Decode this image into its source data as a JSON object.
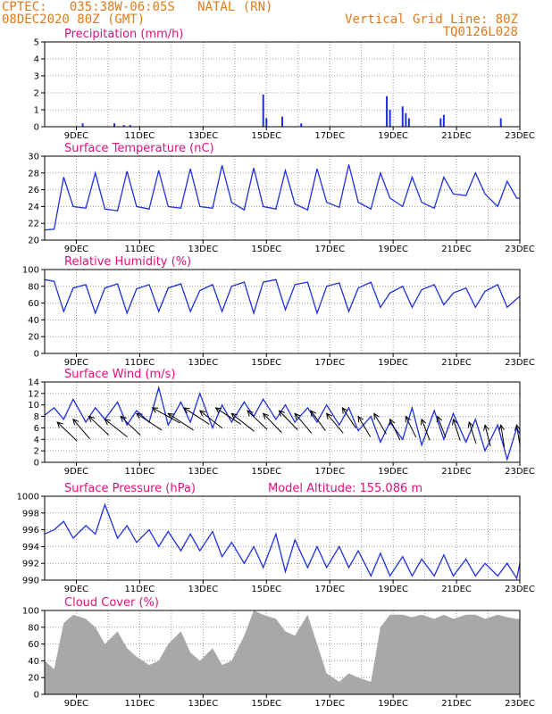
{
  "header": {
    "line1": "CPTEC:   035:38W-06:05S   NATAL (RN)",
    "line2": "08DEC2020 80Z (GMT)",
    "right1": "Vertical Grid Line: 80Z",
    "right2": "TQ0126L028"
  },
  "colors": {
    "header": "#e07a1a",
    "title": "#e0107a",
    "line": "#1f2fe0",
    "cloud": "#a8a8a8",
    "grid": "#9a9a9a"
  },
  "chart_data": [
    {
      "type": "bar",
      "title": "Precipitation (mm/h)",
      "ylim": [
        0,
        5
      ],
      "yticks": [
        "0",
        "1",
        "2",
        "3",
        "4",
        "5"
      ],
      "xticks": [
        "9DEC",
        "11DEC",
        "13DEC",
        "15DEC",
        "17DEC",
        "19DEC",
        "21DEC",
        "23DEC"
      ],
      "x": [
        9.2,
        10.2,
        10.5,
        10.7,
        14.9,
        15.0,
        15.5,
        16.1,
        18.8,
        18.9,
        19.3,
        19.4,
        19.5,
        20.5,
        20.6,
        22.4
      ],
      "values": [
        0.2,
        0.2,
        0.1,
        0.1,
        1.9,
        0.5,
        0.6,
        0.2,
        1.8,
        1.0,
        1.2,
        0.8,
        0.5,
        0.5,
        0.7,
        0.5
      ]
    },
    {
      "type": "line",
      "title": "Surface Temperature (nC)",
      "ylim": [
        20,
        30
      ],
      "yticks": [
        "20",
        "22",
        "24",
        "26",
        "28",
        "30"
      ],
      "xticks": [
        "9DEC",
        "11DEC",
        "13DEC",
        "15DEC",
        "17DEC",
        "19DEC",
        "21DEC",
        "23DEC"
      ],
      "x": [
        8.0,
        8.3,
        8.6,
        8.9,
        9.3,
        9.6,
        9.9,
        10.3,
        10.6,
        10.9,
        11.3,
        11.6,
        11.9,
        12.3,
        12.6,
        12.9,
        13.3,
        13.6,
        13.9,
        14.3,
        14.6,
        14.9,
        15.3,
        15.6,
        15.9,
        16.3,
        16.6,
        16.9,
        17.3,
        17.6,
        17.9,
        18.3,
        18.6,
        18.9,
        19.3,
        19.6,
        19.9,
        20.3,
        20.6,
        20.9,
        21.3,
        21.6,
        21.9,
        22.3,
        22.6,
        22.9,
        23.0
      ],
      "values": [
        21.2,
        21.3,
        27.5,
        24.0,
        23.8,
        28.0,
        23.7,
        23.5,
        28.2,
        24.0,
        23.7,
        28.3,
        24.0,
        23.8,
        28.5,
        24.0,
        23.8,
        28.9,
        24.5,
        23.6,
        28.6,
        24.0,
        23.7,
        28.3,
        24.3,
        23.6,
        28.5,
        24.5,
        23.9,
        29.0,
        24.5,
        23.7,
        28.0,
        25.0,
        24.0,
        27.5,
        24.5,
        23.8,
        27.5,
        25.5,
        25.3,
        28.0,
        25.5,
        24.0,
        27.0,
        25.0,
        25.0
      ]
    },
    {
      "type": "line",
      "title": "Relative Humidity (%)",
      "ylim": [
        0,
        100
      ],
      "yticks": [
        "0",
        "20",
        "40",
        "60",
        "80",
        "100"
      ],
      "xticks": [
        "9DEC",
        "11DEC",
        "13DEC",
        "15DEC",
        "17DEC",
        "19DEC",
        "21DEC",
        "23DEC"
      ],
      "x": [
        8.0,
        8.3,
        8.6,
        8.9,
        9.3,
        9.6,
        9.9,
        10.3,
        10.6,
        10.9,
        11.3,
        11.6,
        11.9,
        12.3,
        12.6,
        12.9,
        13.3,
        13.6,
        13.9,
        14.3,
        14.6,
        14.9,
        15.3,
        15.6,
        15.9,
        16.3,
        16.6,
        16.9,
        17.3,
        17.6,
        17.9,
        18.3,
        18.6,
        18.9,
        19.3,
        19.6,
        19.9,
        20.3,
        20.6,
        20.9,
        21.3,
        21.6,
        21.9,
        22.3,
        22.6,
        22.9,
        23.0
      ],
      "values": [
        88,
        86,
        50,
        78,
        82,
        48,
        78,
        83,
        48,
        77,
        82,
        50,
        78,
        83,
        50,
        75,
        82,
        50,
        80,
        85,
        48,
        85,
        88,
        52,
        82,
        85,
        48,
        80,
        84,
        50,
        78,
        85,
        55,
        72,
        80,
        55,
        76,
        82,
        58,
        72,
        78,
        55,
        74,
        82,
        55,
        65,
        68
      ]
    },
    {
      "type": "line",
      "title": "Surface Wind (m/s)",
      "ylim": [
        0,
        14
      ],
      "yticks": [
        "0",
        "2",
        "4",
        "6",
        "8",
        "10",
        "12",
        "14"
      ],
      "xticks": [
        "9DEC",
        "11DEC",
        "13DEC",
        "15DEC",
        "17DEC",
        "19DEC",
        "21DEC",
        "23DEC"
      ],
      "x": [
        8.0,
        8.3,
        8.6,
        8.9,
        9.3,
        9.6,
        9.9,
        10.3,
        10.6,
        10.9,
        11.3,
        11.6,
        11.9,
        12.3,
        12.6,
        12.9,
        13.3,
        13.6,
        13.9,
        14.3,
        14.6,
        14.9,
        15.3,
        15.6,
        15.9,
        16.3,
        16.6,
        16.9,
        17.3,
        17.6,
        17.9,
        18.3,
        18.6,
        18.9,
        19.3,
        19.6,
        19.9,
        20.3,
        20.6,
        20.9,
        21.3,
        21.6,
        21.9,
        22.3,
        22.6,
        22.9,
        23.0
      ],
      "values": [
        8.2,
        9.5,
        7.5,
        11.0,
        7.0,
        9.5,
        7.5,
        10.5,
        6.5,
        9.0,
        7.0,
        13.0,
        6.5,
        10.5,
        7.0,
        12.0,
        6.0,
        10.0,
        7.0,
        10.5,
        8.0,
        11.0,
        7.5,
        10.0,
        7.0,
        9.5,
        7.0,
        10.0,
        6.5,
        9.5,
        5.5,
        8.0,
        3.5,
        7.0,
        4.0,
        9.5,
        3.0,
        9.0,
        4.0,
        8.5,
        3.5,
        7.5,
        2.0,
        6.5,
        0.5,
        6.0,
        5.0
      ],
      "arrow_times": [
        8.4,
        8.9,
        9.4,
        9.9,
        10.4,
        10.9,
        11.4,
        11.9,
        12.4,
        12.9,
        13.4,
        13.9,
        14.4,
        14.9,
        15.4,
        15.9,
        16.4,
        16.9,
        17.4,
        17.9,
        18.4,
        18.9,
        19.4,
        19.9,
        20.4,
        20.9,
        21.4,
        21.9,
        22.4,
        22.9
      ],
      "arrow_speed": [
        7.0,
        7.5,
        8.0,
        7.5,
        8.0,
        8.5,
        9.5,
        8.5,
        9.5,
        9.0,
        9.5,
        8.5,
        9.0,
        8.5,
        9.0,
        8.5,
        9.0,
        8.5,
        9.5,
        8.0,
        8.5,
        7.5,
        8.0,
        7.5,
        8.0,
        7.5,
        7.0,
        6.5,
        6.5,
        6.5
      ],
      "arrow_dir_deg": [
        120,
        115,
        120,
        125,
        120,
        130,
        135,
        130,
        130,
        125,
        130,
        125,
        120,
        118,
        118,
        115,
        112,
        115,
        110,
        108,
        108,
        105,
        105,
        102,
        102,
        100,
        100,
        98,
        95,
        95
      ]
    },
    {
      "type": "line",
      "title": "Surface Pressure (hPa)",
      "subtitle": "Model Altitude: 155.086 m",
      "ylim": [
        990,
        1000
      ],
      "yticks": [
        "990",
        "992",
        "994",
        "996",
        "998",
        "1000"
      ],
      "xticks": [
        "9DEC",
        "11DEC",
        "13DEC",
        "15DEC",
        "17DEC",
        "19DEC",
        "21DEC",
        "23DEC"
      ],
      "x": [
        8.0,
        8.3,
        8.6,
        8.9,
        9.3,
        9.6,
        9.9,
        10.3,
        10.6,
        10.9,
        11.3,
        11.6,
        11.9,
        12.3,
        12.6,
        12.9,
        13.3,
        13.6,
        13.9,
        14.3,
        14.6,
        14.9,
        15.3,
        15.6,
        15.9,
        16.3,
        16.6,
        16.9,
        17.3,
        17.6,
        17.9,
        18.3,
        18.6,
        18.9,
        19.3,
        19.6,
        19.9,
        20.3,
        20.6,
        20.9,
        21.3,
        21.6,
        21.9,
        22.3,
        22.6,
        22.9,
        23.0
      ],
      "values": [
        995.5,
        996.0,
        997.0,
        995.0,
        996.5,
        995.5,
        999.0,
        995.0,
        996.5,
        994.5,
        996.0,
        994.0,
        995.8,
        993.5,
        995.5,
        993.5,
        995.8,
        992.8,
        994.5,
        992.0,
        994.0,
        991.5,
        995.5,
        991.0,
        994.8,
        991.5,
        994.0,
        991.5,
        994.0,
        991.5,
        993.5,
        990.5,
        993.2,
        990.5,
        992.8,
        990.5,
        992.5,
        990.5,
        993.0,
        990.5,
        992.5,
        990.5,
        992.0,
        990.5,
        992.0,
        990.2,
        992.0
      ]
    },
    {
      "type": "bar",
      "title": "Cloud Cover (%)",
      "ylim": [
        0,
        100
      ],
      "yticks": [
        "0",
        "20",
        "40",
        "60",
        "80",
        "100"
      ],
      "xticks": [
        "9DEC",
        "11DEC",
        "13DEC",
        "15DEC",
        "17DEC",
        "19DEC",
        "21DEC",
        "23DEC"
      ],
      "x": [
        8.0,
        8.3,
        8.6,
        8.9,
        9.3,
        9.6,
        9.9,
        10.3,
        10.6,
        10.9,
        11.3,
        11.6,
        11.9,
        12.3,
        12.6,
        12.9,
        13.3,
        13.6,
        13.9,
        14.3,
        14.6,
        14.9,
        15.3,
        15.6,
        15.9,
        16.3,
        16.6,
        16.9,
        17.3,
        17.6,
        17.9,
        18.3,
        18.6,
        18.9,
        19.3,
        19.6,
        19.9,
        20.3,
        20.6,
        20.9,
        21.3,
        21.6,
        21.9,
        22.3,
        22.6,
        22.9
      ],
      "values": [
        40,
        30,
        85,
        95,
        90,
        80,
        60,
        75,
        55,
        45,
        35,
        40,
        60,
        75,
        50,
        40,
        55,
        35,
        40,
        70,
        100,
        95,
        90,
        75,
        70,
        95,
        60,
        25,
        15,
        25,
        20,
        15,
        80,
        95,
        95,
        92,
        95,
        90,
        95,
        90,
        95,
        95,
        90,
        95,
        92,
        90
      ]
    }
  ]
}
